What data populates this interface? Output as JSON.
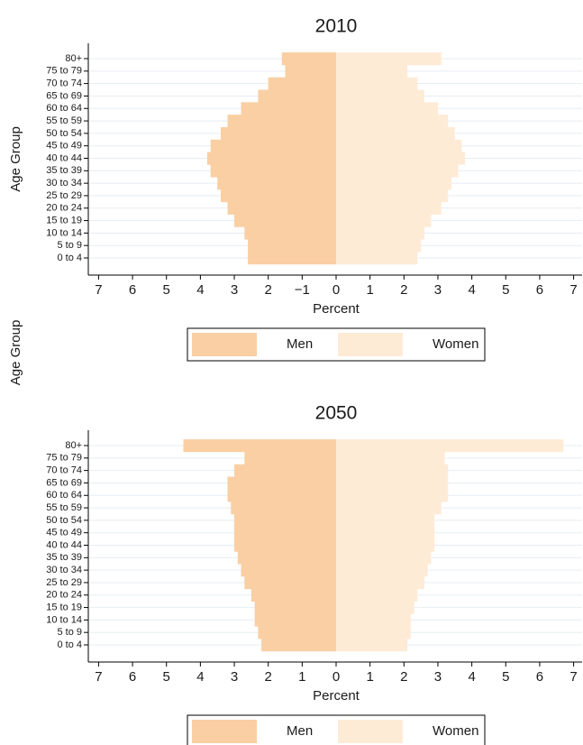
{
  "chart_data": [
    {
      "type": "bar",
      "orientation": "horizontal",
      "title": "2010",
      "x_label": "Percent",
      "y_label": "Age Group",
      "categories": [
        "0 to 4",
        "5 to 9",
        "10 to 14",
        "15 to 19",
        "20 to 24",
        "25 to 29",
        "30 to 34",
        "35 to 39",
        "40 to 44",
        "45 to 49",
        "50 to 54",
        "55 to 59",
        "60 to 64",
        "65 to 69",
        "70 to 74",
        "75 to 79",
        "80+"
      ],
      "series": [
        {
          "name": "Men",
          "color": "#f9cfa3",
          "values": [
            -2.6,
            -2.6,
            -2.7,
            -3.0,
            -3.2,
            -3.4,
            -3.5,
            -3.7,
            -3.8,
            -3.7,
            -3.4,
            -3.2,
            -2.8,
            -2.3,
            -2.0,
            -1.5,
            -1.6
          ]
        },
        {
          "name": "Women",
          "color": "#feebd6",
          "values": [
            2.4,
            2.5,
            2.6,
            2.8,
            3.1,
            3.3,
            3.4,
            3.6,
            3.8,
            3.7,
            3.5,
            3.3,
            3.0,
            2.6,
            2.4,
            2.1,
            3.1
          ]
        }
      ],
      "xlim": [
        -7.25,
        7.25
      ],
      "xticks": [
        {
          "value": -7,
          "label": "7"
        },
        {
          "value": -6,
          "label": "6"
        },
        {
          "value": -5,
          "label": "5"
        },
        {
          "value": -4,
          "label": "4"
        },
        {
          "value": -3,
          "label": "3"
        },
        {
          "value": -2,
          "label": "2"
        },
        {
          "value": -1,
          "label": "−1"
        },
        0,
        1,
        2,
        3,
        4,
        5,
        6,
        7
      ],
      "grid": true
    },
    {
      "type": "bar",
      "orientation": "horizontal",
      "title": "2050",
      "x_label": "Percent",
      "y_label": "Age Group",
      "categories": [
        "0 to 4",
        "5 to 9",
        "10 to 14",
        "15 to 19",
        "20 to 24",
        "25 to 29",
        "30 to 34",
        "35 to 39",
        "40 to 44",
        "45 to 49",
        "50 to 54",
        "55 to 59",
        "60 to 64",
        "65 to 69",
        "70 to 74",
        "75 to 79",
        "80+"
      ],
      "series": [
        {
          "name": "Men",
          "color": "#f9cfa3",
          "values": [
            -2.2,
            -2.3,
            -2.4,
            -2.4,
            -2.5,
            -2.7,
            -2.8,
            -2.9,
            -3.0,
            -3.0,
            -3.0,
            -3.1,
            -3.2,
            -3.2,
            -3.0,
            -2.7,
            -4.5
          ]
        },
        {
          "name": "Women",
          "color": "#feebd6",
          "values": [
            2.1,
            2.2,
            2.2,
            2.3,
            2.4,
            2.6,
            2.7,
            2.8,
            2.9,
            2.9,
            2.9,
            3.1,
            3.3,
            3.3,
            3.3,
            3.2,
            6.7
          ]
        }
      ],
      "xlim": [
        -7.25,
        7.25
      ],
      "xticks": [
        {
          "value": -7,
          "label": "7"
        },
        {
          "value": -6,
          "label": "6"
        },
        {
          "value": -5,
          "label": "5"
        },
        {
          "value": -4,
          "label": "4"
        },
        {
          "value": -3,
          "label": "3"
        },
        {
          "value": -2,
          "label": "2"
        },
        {
          "value": -1,
          "label": "1"
        },
        0,
        1,
        2,
        3,
        4,
        5,
        6,
        7
      ],
      "grid": true
    }
  ]
}
